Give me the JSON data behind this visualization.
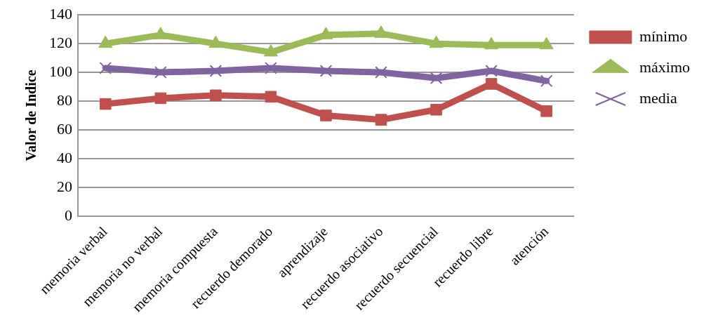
{
  "chart_data": {
    "type": "line",
    "ylabel": "Valor de Indice",
    "categories": [
      "memoria verbal",
      "memoria no verbal",
      "memoria compuesta",
      "recuerdo demorado",
      "aprendizaje",
      "recuerdo asociativo",
      "recuerdo secuencial",
      "recuerdo libre",
      "atención"
    ],
    "series": [
      {
        "name": "mínimo",
        "color": "#c0504d",
        "marker": "square",
        "values": [
          78,
          82,
          84,
          83,
          70,
          67,
          74,
          92,
          73
        ]
      },
      {
        "name": "máximo",
        "color": "#9bbb59",
        "marker": "triangle",
        "values": [
          120,
          126,
          120,
          114,
          126,
          127,
          120,
          119,
          119
        ]
      },
      {
        "name": "media",
        "color": "#8064a2",
        "marker": "cross",
        "values": [
          103,
          100,
          101,
          103,
          101,
          100,
          96,
          101,
          94
        ]
      }
    ],
    "ylim": [
      0,
      140
    ],
    "yticks": [
      0,
      20,
      40,
      60,
      80,
      100,
      120,
      140
    ],
    "grid": "y",
    "legend": "right"
  }
}
